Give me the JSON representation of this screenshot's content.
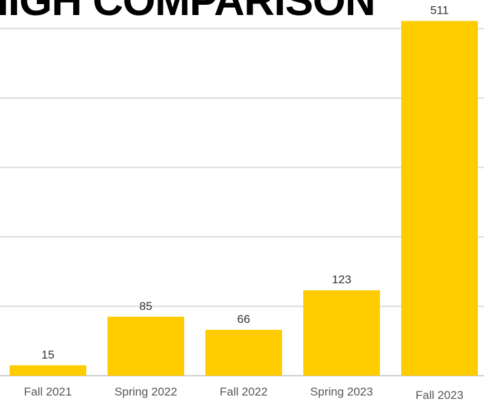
{
  "page_title": "HIGH COMPARISON",
  "colors": {
    "bar": "#FFCC00",
    "grid": "#DCDCDC"
  },
  "chart_data": {
    "type": "bar",
    "categories": [
      "Fall 2021",
      "Spring 2022",
      "Fall 2022",
      "Spring 2023",
      "Fall 2023"
    ],
    "values": [
      15,
      85,
      66,
      123,
      511
    ],
    "ylim": [
      0,
      500
    ],
    "grid": true,
    "legend": "none"
  }
}
